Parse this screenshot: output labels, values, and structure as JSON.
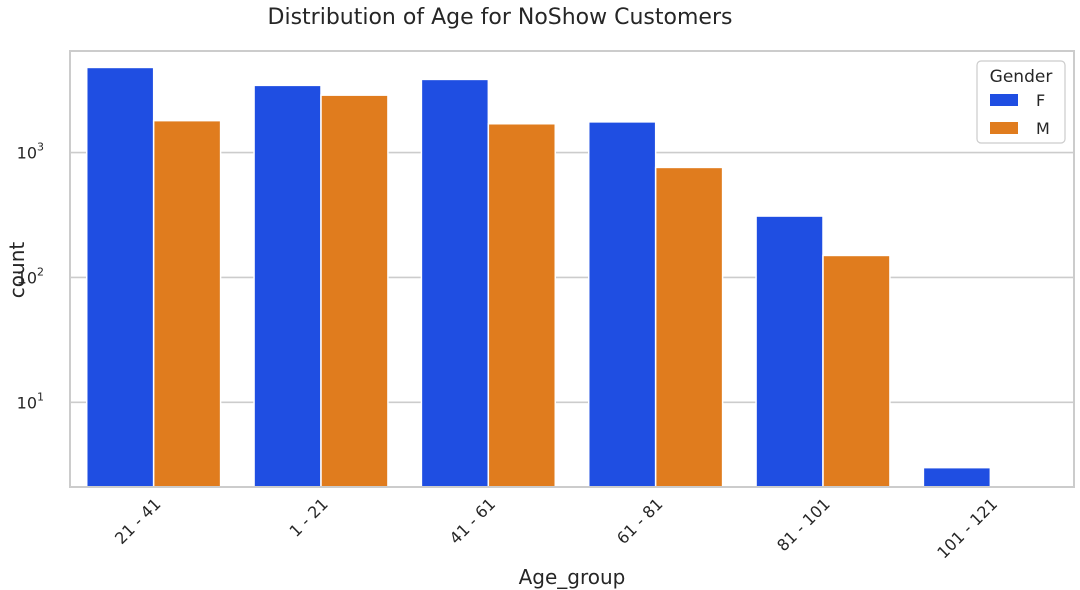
{
  "chart_data": {
    "type": "bar",
    "title": "Distribution of Age for NoShow Customers",
    "xlabel": "Age_group",
    "ylabel": "count",
    "yscale": "log",
    "ylim": [
      2.1,
      6500
    ],
    "yticks": [
      {
        "value": 10,
        "base": "10",
        "exp": "1"
      },
      {
        "value": 100,
        "base": "10",
        "exp": "2"
      },
      {
        "value": 1000,
        "base": "10",
        "exp": "3"
      }
    ],
    "grid": true,
    "categories": [
      "21 - 41",
      "1 - 21",
      "41 - 61",
      "61 - 81",
      "81 - 101",
      "101 - 121"
    ],
    "series": [
      {
        "name": "F",
        "color": "#1f4ee2",
        "values": [
          4800,
          3450,
          3850,
          1760,
          310,
          3
        ]
      },
      {
        "name": "M",
        "color": "#e07c1e",
        "values": [
          1800,
          2880,
          1700,
          760,
          150,
          null
        ]
      }
    ],
    "legend": {
      "title": "Gender",
      "position": "top-right"
    }
  }
}
